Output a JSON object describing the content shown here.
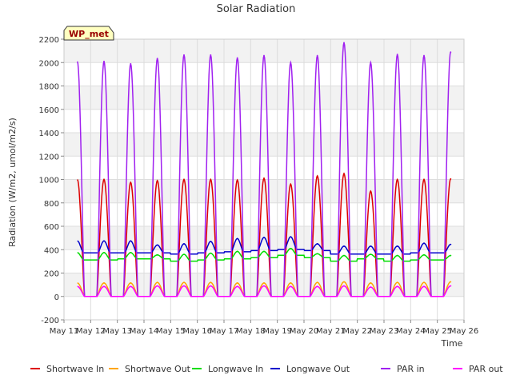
{
  "chart_data": {
    "type": "line",
    "title": "Solar Radiation",
    "xlabel": "Time",
    "ylabel": "Radiation (W/m2, umol/m2/s)",
    "site_label": "WP_met",
    "ylim": [
      -200,
      2200
    ],
    "yticks": [
      -200,
      0,
      200,
      400,
      600,
      800,
      1000,
      1200,
      1400,
      1600,
      1800,
      2000,
      2200
    ],
    "xlim": [
      "May 11",
      "May 26"
    ],
    "xticks": [
      "May 11",
      "May 12",
      "May 13",
      "May 14",
      "May 15",
      "May 16",
      "May 17",
      "May 18",
      "May 19",
      "May 20",
      "May 21",
      "May 22",
      "May 23",
      "May 24",
      "May 25",
      "May 26"
    ],
    "grid": true,
    "legend_position": "bottom",
    "data_start": "May 11 12:00",
    "data_end": "May 25 12:00",
    "daily_peak_dates": [
      "May 12",
      "May 13",
      "May 14",
      "May 15",
      "May 16",
      "May 17",
      "May 18",
      "May 19",
      "May 20",
      "May 21",
      "May 22",
      "May 23",
      "May 24",
      "May 25"
    ],
    "series": [
      {
        "name": "Shortwave In",
        "color": "#dd0000",
        "kind": "diurnal",
        "daily_peak": [
          1000,
          975,
          990,
          1000,
          1000,
          995,
          1010,
          960,
          1030,
          1050,
          900,
          1000,
          1000,
          1005
        ]
      },
      {
        "name": "Shortwave Out",
        "color": "#ffa500",
        "kind": "diurnal",
        "daily_peak": [
          115,
          115,
          120,
          120,
          120,
          115,
          115,
          115,
          120,
          125,
          115,
          120,
          120,
          125
        ]
      },
      {
        "name": "Longwave In",
        "color": "#00dd00",
        "kind": "baseline",
        "daily_mean": [
          320,
          330,
          330,
          310,
          320,
          330,
          340,
          360,
          340,
          310,
          330,
          310,
          320,
          320
        ],
        "daily_peak": [
          375,
          375,
          355,
          360,
          370,
          385,
          385,
          410,
          365,
          350,
          360,
          350,
          355,
          350
        ]
      },
      {
        "name": "Longwave Out",
        "color": "#0000cc",
        "kind": "baseline",
        "daily_mean": [
          380,
          380,
          380,
          370,
          380,
          390,
          400,
          410,
          400,
          370,
          370,
          370,
          380,
          380
        ],
        "daily_peak": [
          475,
          475,
          440,
          450,
          470,
          495,
          505,
          510,
          450,
          430,
          430,
          430,
          455,
          445
        ]
      },
      {
        "name": "PAR in",
        "color": "#a020f0",
        "kind": "diurnal",
        "daily_peak": [
          2010,
          1990,
          2035,
          2065,
          2065,
          2040,
          2060,
          2000,
          2060,
          2170,
          2000,
          2070,
          2060,
          2090
        ]
      },
      {
        "name": "PAR out",
        "color": "#ff00ff",
        "kind": "diurnal",
        "daily_peak": [
          85,
          85,
          90,
          90,
          90,
          85,
          90,
          85,
          85,
          90,
          80,
          85,
          85,
          90
        ]
      }
    ]
  }
}
